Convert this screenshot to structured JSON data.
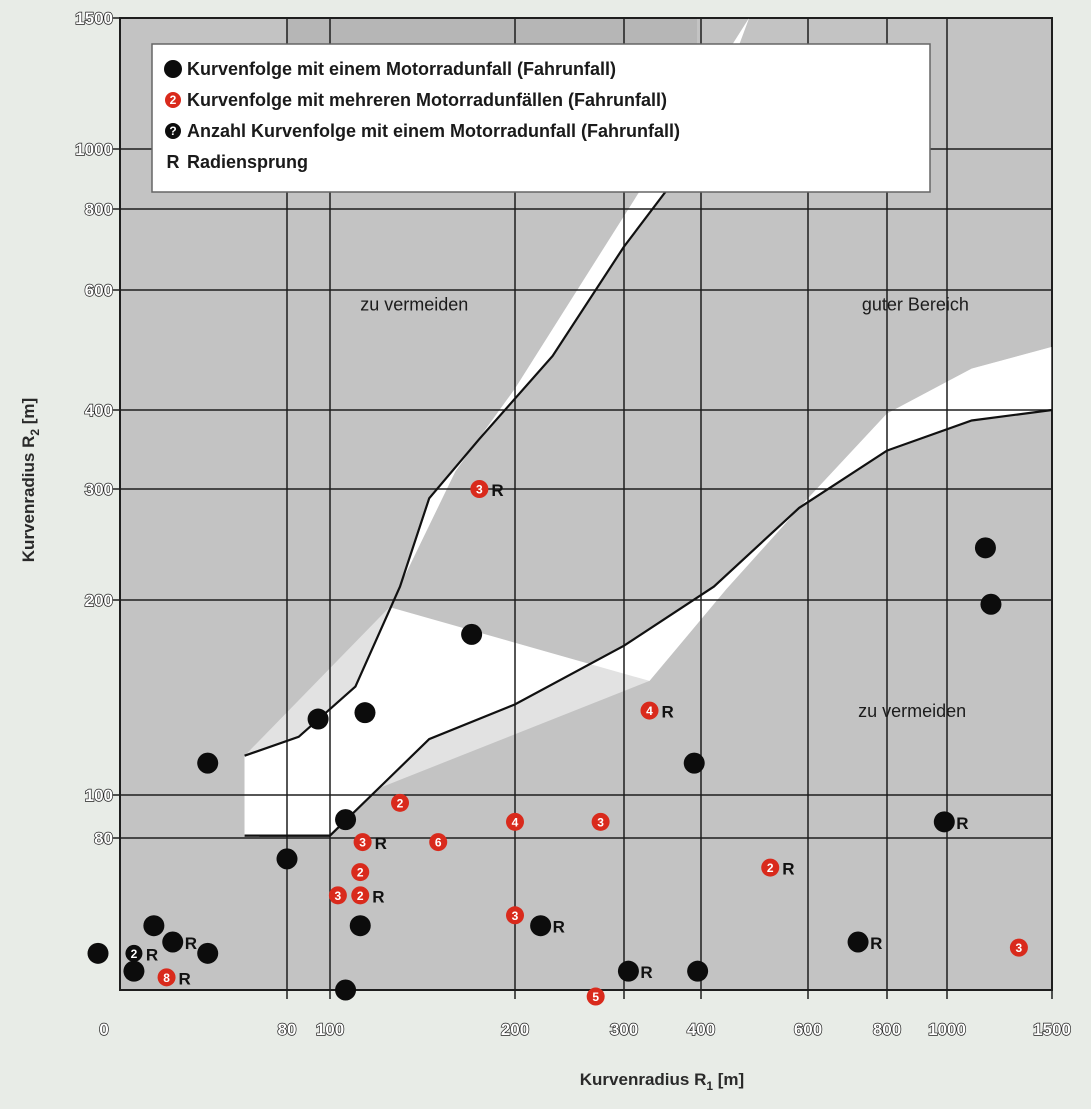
{
  "chart_data": {
    "type": "scatter",
    "xlabel": "Kurvenradius R",
    "xlabel_sub": "1",
    "xlabel_unit": " [m]",
    "ylabel": "Kurvenradius R",
    "ylabel_sub": "2",
    "ylabel_unit": " [m]",
    "xlim": [
      50,
      1500
    ],
    "ylim": [
      50,
      1500
    ],
    "x_tick_values": [
      80,
      100,
      200,
      300,
      400,
      600,
      800,
      1000,
      1500
    ],
    "x_tick_labels": [
      "80",
      "100",
      "200",
      "300",
      "400",
      "600",
      "800",
      "1000",
      "1500"
    ],
    "x_origin_label": "0",
    "y_tick_values": [
      80,
      100,
      200,
      300,
      400,
      600,
      800,
      1000,
      1500
    ],
    "y_tick_labels": [
      "80",
      "100",
      "200",
      "300",
      "400",
      "600",
      "800",
      "1000",
      "1500"
    ],
    "grid": true,
    "legend_position": "top",
    "legend": [
      {
        "symbol": "black-dot",
        "text": "Kurvenfolge mit einem Motorradunfall (Fahrunfall)"
      },
      {
        "symbol": "red-number",
        "number": "2",
        "text": "Kurvenfolge mit mehreren Motorradunfällen (Fahrunfall)"
      },
      {
        "symbol": "black-number",
        "number": "?",
        "text": "Anzahl Kurvenfolge mit einem Motorradunfall (Fahrunfall)"
      },
      {
        "symbol": "letter",
        "letter": "R",
        "text": "Radiensprung"
      }
    ],
    "region_labels": [
      {
        "text": "zu vermeiden",
        "x": 112,
        "y": 560
      },
      {
        "text": "guter Bereich",
        "x": 730,
        "y": 560
      },
      {
        "text": "zu vermeiden",
        "x": 720,
        "y": 132
      }
    ],
    "boundaries": {
      "upper": [
        [
          71,
          115
        ],
        [
          85,
          123
        ],
        [
          110,
          147
        ],
        [
          130,
          210
        ],
        [
          145,
          290
        ],
        [
          175,
          360
        ],
        [
          230,
          480
        ],
        [
          300,
          700
        ],
        [
          365,
          900
        ],
        [
          420,
          1120
        ]
      ],
      "upper_band": [
        [
          125,
          195
        ],
        [
          160,
          320
        ],
        [
          200,
          430
        ],
        [
          300,
          780
        ],
        [
          480,
          1500
        ]
      ],
      "lower": [
        [
          74,
          81
        ],
        [
          100,
          81
        ],
        [
          145,
          122
        ],
        [
          200,
          138
        ],
        [
          300,
          170
        ],
        [
          420,
          210
        ],
        [
          580,
          280
        ],
        [
          800,
          345
        ],
        [
          1100,
          385
        ],
        [
          1500,
          400
        ]
      ],
      "lower_band": [
        [
          330,
          150
        ],
        [
          440,
          208
        ],
        [
          600,
          290
        ],
        [
          800,
          395
        ],
        [
          1100,
          460
        ],
        [
          1500,
          495
        ]
      ],
      "step": [
        [
          71,
          81
        ],
        [
          100,
          81
        ]
      ]
    },
    "series": [
      {
        "marker": "black-dot",
        "points": [
          {
            "x": 47,
            "y": 56,
            "label": ""
          },
          {
            "x": 52,
            "y": 53,
            "label": ""
          },
          {
            "x": 55,
            "y": 61,
            "label": ""
          },
          {
            "x": 58,
            "y": 58,
            "label": "R"
          },
          {
            "x": 64,
            "y": 56,
            "label": ""
          },
          {
            "x": 64,
            "y": 112,
            "label": ""
          },
          {
            "x": 80,
            "y": 75,
            "label": ""
          },
          {
            "x": 94,
            "y": 131,
            "label": ""
          },
          {
            "x": 106,
            "y": 88,
            "label": ""
          },
          {
            "x": 106,
            "y": 50,
            "label": ""
          },
          {
            "x": 114,
            "y": 134,
            "label": ""
          },
          {
            "x": 112,
            "y": 61,
            "label": ""
          },
          {
            "x": 170,
            "y": 177,
            "label": ""
          },
          {
            "x": 220,
            "y": 61,
            "label": "R"
          },
          {
            "x": 305,
            "y": 53,
            "label": "R"
          },
          {
            "x": 390,
            "y": 112,
            "label": ""
          },
          {
            "x": 395,
            "y": 53,
            "label": ""
          },
          {
            "x": 720,
            "y": 58,
            "label": "R"
          },
          {
            "x": 990,
            "y": 87,
            "label": "R"
          },
          {
            "x": 1160,
            "y": 242,
            "label": ""
          },
          {
            "x": 1185,
            "y": 197,
            "label": ""
          }
        ]
      },
      {
        "marker": "black-number",
        "points": [
          {
            "x": 52,
            "y": 56,
            "number": "2",
            "label": "R"
          }
        ]
      },
      {
        "marker": "red-number",
        "points": [
          {
            "x": 57,
            "y": 52,
            "number": "8",
            "label": "R"
          },
          {
            "x": 103,
            "y": 67,
            "number": "3",
            "label": ""
          },
          {
            "x": 112,
            "y": 67,
            "number": "2",
            "label": "R"
          },
          {
            "x": 112,
            "y": 72,
            "number": "2",
            "label": ""
          },
          {
            "x": 113,
            "y": 79,
            "number": "3",
            "label": "R"
          },
          {
            "x": 130,
            "y": 96,
            "number": "2",
            "label": ""
          },
          {
            "x": 150,
            "y": 79,
            "number": "6",
            "label": ""
          },
          {
            "x": 175,
            "y": 300,
            "number": "3",
            "label": "R"
          },
          {
            "x": 200,
            "y": 63,
            "number": "3",
            "label": ""
          },
          {
            "x": 200,
            "y": 87,
            "number": "4",
            "label": ""
          },
          {
            "x": 270,
            "y": 49,
            "number": "5",
            "label": ""
          },
          {
            "x": 275,
            "y": 87,
            "number": "3",
            "label": ""
          },
          {
            "x": 330,
            "y": 135,
            "number": "4",
            "label": "R"
          },
          {
            "x": 520,
            "y": 73,
            "number": "2",
            "label": "R"
          },
          {
            "x": 1320,
            "y": 57,
            "number": "3",
            "label": ""
          }
        ]
      }
    ]
  }
}
